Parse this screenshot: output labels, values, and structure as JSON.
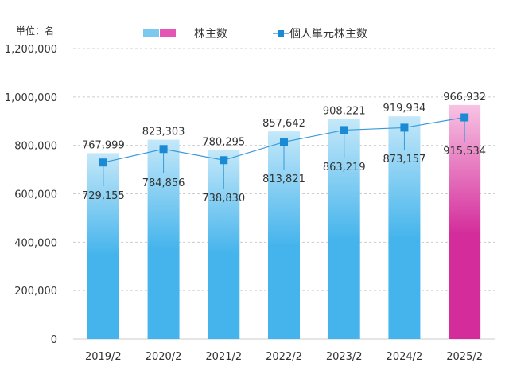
{
  "chart_data": {
    "type": "bar",
    "unit_label": "単位：名",
    "categories": [
      "2019/2",
      "2020/2",
      "2021/2",
      "2022/2",
      "2023/2",
      "2024/2",
      "2025/2"
    ],
    "series": [
      {
        "name": "株主数",
        "type": "bar",
        "values": [
          767999,
          823303,
          780295,
          857642,
          908221,
          919934,
          966932
        ],
        "value_labels": [
          "767,999",
          "823,303",
          "780,295",
          "857,642",
          "908,221",
          "919,934",
          "966,932"
        ]
      },
      {
        "name": "個人単元株主数",
        "type": "line",
        "values": [
          729155,
          784856,
          738830,
          813821,
          863219,
          873157,
          915534
        ],
        "value_labels": [
          "729,155",
          "784,856",
          "738,830",
          "813,821",
          "863,219",
          "873,157",
          "915,534"
        ]
      }
    ],
    "y_ticks": [
      0,
      200000,
      400000,
      600000,
      800000,
      1000000,
      1200000
    ],
    "y_tick_labels": [
      "0",
      "200,000",
      "400,000",
      "600,000",
      "800,000",
      "1,000,000",
      "1,200,000"
    ],
    "ylim": [
      0,
      1200000
    ],
    "grid": true,
    "legend_position": "top-center",
    "colors": {
      "bar_top": "#c4e8f9",
      "bar_bottom": "#45b4ec",
      "highlight_top": "#f7c3e3",
      "highlight_bottom": "#d42d9b",
      "line": "#3a9ad9",
      "marker": "#1a8ad4",
      "legend_highlight": "#e455b4",
      "grid": "#cccccc"
    },
    "highlight_index": 6
  }
}
